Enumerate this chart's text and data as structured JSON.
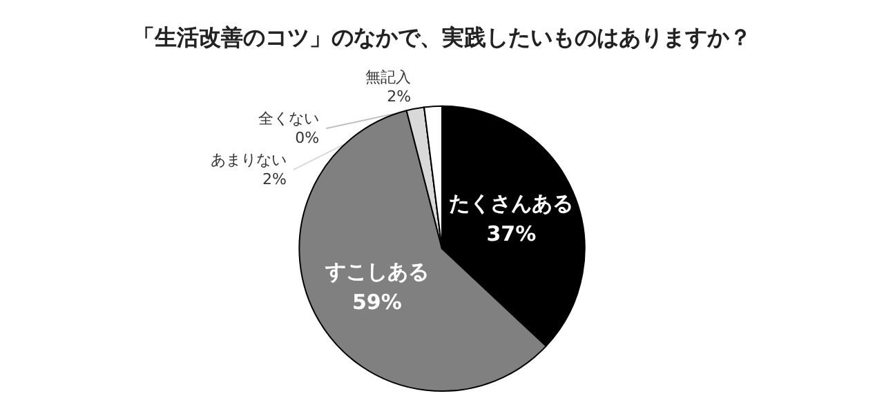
{
  "chart_data": {
    "type": "pie",
    "title": "「生活改善のコツ」のなかで、実践したいものはありますか？",
    "categories": [
      "たくさんある",
      "すこしある",
      "あまりない",
      "全くない",
      "無記入"
    ],
    "values": [
      37,
      59,
      2,
      0,
      2
    ],
    "value_labels": [
      "37%",
      "59%",
      "2%",
      "0%",
      "2%"
    ],
    "colors": [
      "#000000",
      "#808080",
      "#d9d9d9",
      "#bfbfbf",
      "#ffffff"
    ]
  }
}
